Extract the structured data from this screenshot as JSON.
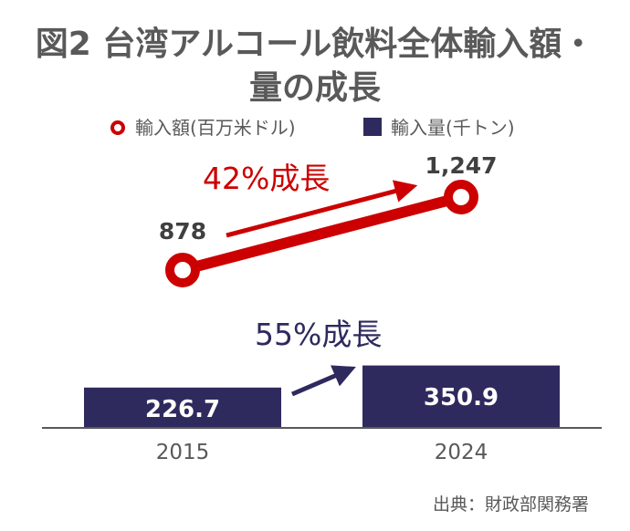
{
  "title_line1": "図2 台湾アルコール飲料全体輸入額・",
  "title_line2": "量の成長",
  "source": "出典：財政部関務署",
  "colors": {
    "import_value": "#cc0000",
    "import_volume": "#2e2a5e",
    "axis": "#595959"
  },
  "chart_data": [
    {
      "type": "line",
      "series": [
        {
          "name": "輸入額(百万米ドル)",
          "values": [
            878,
            1247
          ],
          "labels": [
            "878",
            "1,247"
          ]
        }
      ],
      "categories": [
        "2015",
        "2024"
      ],
      "annotation": "42%成長"
    },
    {
      "type": "bar",
      "series": [
        {
          "name": "輸入量(千トン)",
          "values": [
            226.7,
            350.9
          ],
          "labels": [
            "226.7",
            "350.9"
          ]
        }
      ],
      "categories": [
        "2015",
        "2024"
      ],
      "ylim": [
        0,
        500
      ],
      "annotation": "55%成長"
    }
  ]
}
